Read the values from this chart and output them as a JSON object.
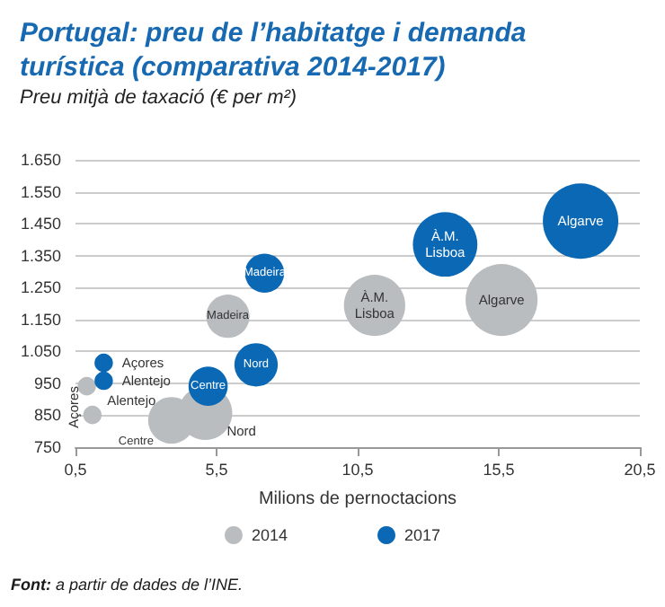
{
  "chart_data": {
    "type": "bubble",
    "title": "Portugal: preu de l’habitatge i demanda turística (comparativa 2014-2017)",
    "subtitle": "Preu mitjà de taxació (€ per m²)",
    "xlabel": "Milions de pernoctacions",
    "annotations": [
      "Font: a partir de dades de l’INE."
    ],
    "xlim": [
      0.5,
      20.5
    ],
    "xticks": [
      {
        "value": 0.5,
        "label": "0,5"
      },
      {
        "value": 5.5,
        "label": "5,5"
      },
      {
        "value": 10.5,
        "label": "10,5"
      },
      {
        "value": 15.5,
        "label": "15,5"
      },
      {
        "value": 20.5,
        "label": "20,5"
      }
    ],
    "ylim": [
      750,
      1650
    ],
    "yticks": [
      {
        "value": 750,
        "label": "750"
      },
      {
        "value": 850,
        "label": "850"
      },
      {
        "value": 950,
        "label": "950"
      },
      {
        "value": 1050,
        "label": "1.050"
      },
      {
        "value": 1150,
        "label": "1.150"
      },
      {
        "value": 1250,
        "label": "1.250"
      },
      {
        "value": 1350,
        "label": "1.350"
      },
      {
        "value": 1450,
        "label": "1.450"
      },
      {
        "value": 1550,
        "label": "1.550"
      },
      {
        "value": 1650,
        "label": "1.650"
      }
    ],
    "grid": "y",
    "legend": "bottom",
    "series": [
      {
        "name": "2014",
        "color": "#b9bdc0",
        "x": [
          0.9,
          1.1,
          3.9,
          5.1,
          5.9,
          11.1,
          15.6
        ],
        "values": [
          941,
          851,
          834,
          857,
          1160,
          1194,
          1211
        ],
        "sizes": [
          0.06,
          0.06,
          0.38,
          0.51,
          0.33,
          0.66,
          0.91
        ],
        "value_labels": [
          "Açores",
          "Alentejo",
          "Centre",
          "Nord",
          "Madeira",
          "À.M. Lisboa",
          "Algarve"
        ]
      },
      {
        "name": "2017",
        "color": "#0a68b4",
        "x": [
          1.5,
          1.5,
          5.2,
          6.9,
          7.2,
          13.6,
          18.4
        ],
        "values": [
          1014,
          958,
          941,
          1008,
          1295,
          1385,
          1458
        ],
        "sizes": [
          0.06,
          0.06,
          0.27,
          0.33,
          0.27,
          0.73,
          1
        ],
        "value_labels": [
          "Açores",
          "Alentejo",
          "Centre",
          "Nord",
          "Madeira",
          "À.M. Lisboa",
          "Algarve"
        ]
      }
    ]
  }
}
